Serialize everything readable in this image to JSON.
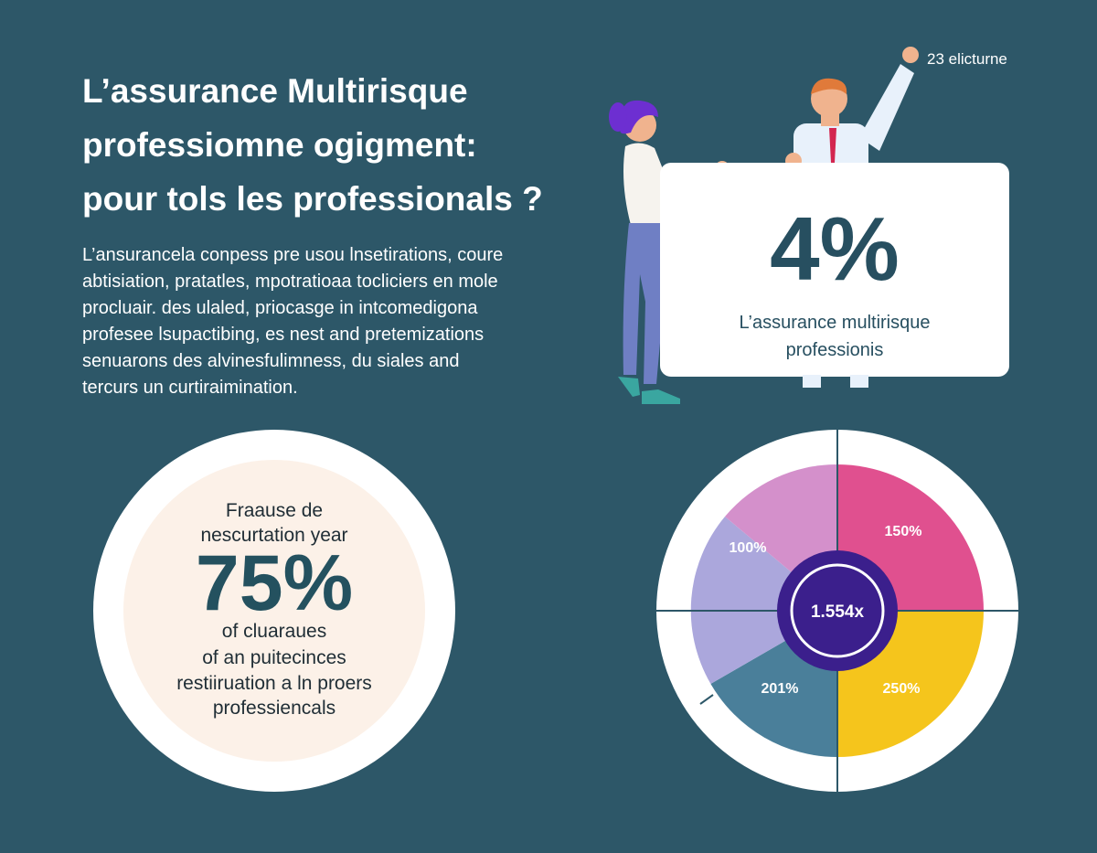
{
  "header": {
    "title_lines": [
      "L’assurance Multirisque",
      "professiomne ogigment:",
      "pour tols les professionals ?"
    ],
    "corner": "23 elicturne"
  },
  "intro": {
    "lines": [
      "L’ansurancela conpess pre usou lnsetirations, coure",
      "abtisiation, pratatles, mpotratioaa tocliciers en mole",
      "procluair. des ulaled, priocasge in intcomedigona",
      "profesee lsupactibing, es nest and pretemizations",
      "senuarons des alvinesfulimness, du siales and",
      "tercurs un curtiraimination."
    ]
  },
  "card": {
    "figure": "4%",
    "caption_lines": [
      "L’assurance multirisque",
      "professionis"
    ]
  },
  "circle": {
    "top_lines": [
      "Fraause de",
      "nescurtation year"
    ],
    "figure": "75%",
    "bottom_lines": [
      "of cluaraues",
      "of an puitecinces",
      "restiiruation a ln proers",
      "professiencals"
    ]
  },
  "wheel": {
    "labels": [
      "100%",
      "150%",
      "201%",
      "250%"
    ],
    "center": "1.554x"
  }
}
